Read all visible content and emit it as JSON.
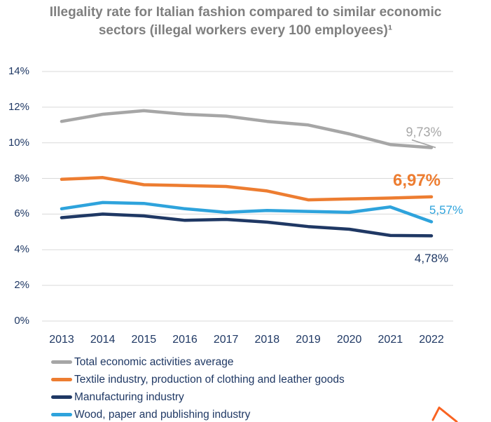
{
  "title": {
    "text": "Illegality rate for Italian fashion compared to similar economic sectors (illegal workers every 100 employees)¹",
    "color": "#7F7F7F"
  },
  "colors": {
    "axis_text": "#1F3864",
    "gridline": "#D9D9D9",
    "title_text": "#7F7F7F",
    "cursor_arrow": "#F96322"
  },
  "chart_data": {
    "type": "line",
    "title": "Illegality rate for Italian fashion compared to similar economic sectors (illegal workers every 100 employees)¹",
    "x": [
      "2013",
      "2014",
      "2015",
      "2016",
      "2017",
      "2018",
      "2019",
      "2020",
      "2021",
      "2022"
    ],
    "ylim": [
      0,
      14
    ],
    "yticks": [
      "0%",
      "2%",
      "4%",
      "6%",
      "8%",
      "10%",
      "12%",
      "14%"
    ],
    "grid": true,
    "legend_position": "bottom-left",
    "series": [
      {
        "name": "Total economic activities average",
        "color": "#A6A6A6",
        "values": [
          11.2,
          11.6,
          11.8,
          11.6,
          11.5,
          11.2,
          11.0,
          10.5,
          9.9,
          9.73
        ],
        "end_label": "9,73%"
      },
      {
        "name": "Textile industry, production of clothing and leather goods",
        "color": "#ED7D31",
        "values": [
          7.95,
          8.05,
          7.65,
          7.6,
          7.55,
          7.3,
          6.8,
          6.85,
          6.9,
          6.97
        ],
        "end_label": "6,97%"
      },
      {
        "name": "Manufacturing industry",
        "color": "#1F3864",
        "values": [
          5.8,
          6.0,
          5.9,
          5.65,
          5.7,
          5.55,
          5.3,
          5.15,
          4.8,
          4.78
        ],
        "end_label": "4,78%"
      },
      {
        "name": "Wood, paper and publishing industry",
        "color": "#2EA3DC",
        "values": [
          6.3,
          6.65,
          6.6,
          6.3,
          6.1,
          6.2,
          6.15,
          6.1,
          6.4,
          5.57
        ],
        "end_label": "5,57%"
      }
    ]
  }
}
